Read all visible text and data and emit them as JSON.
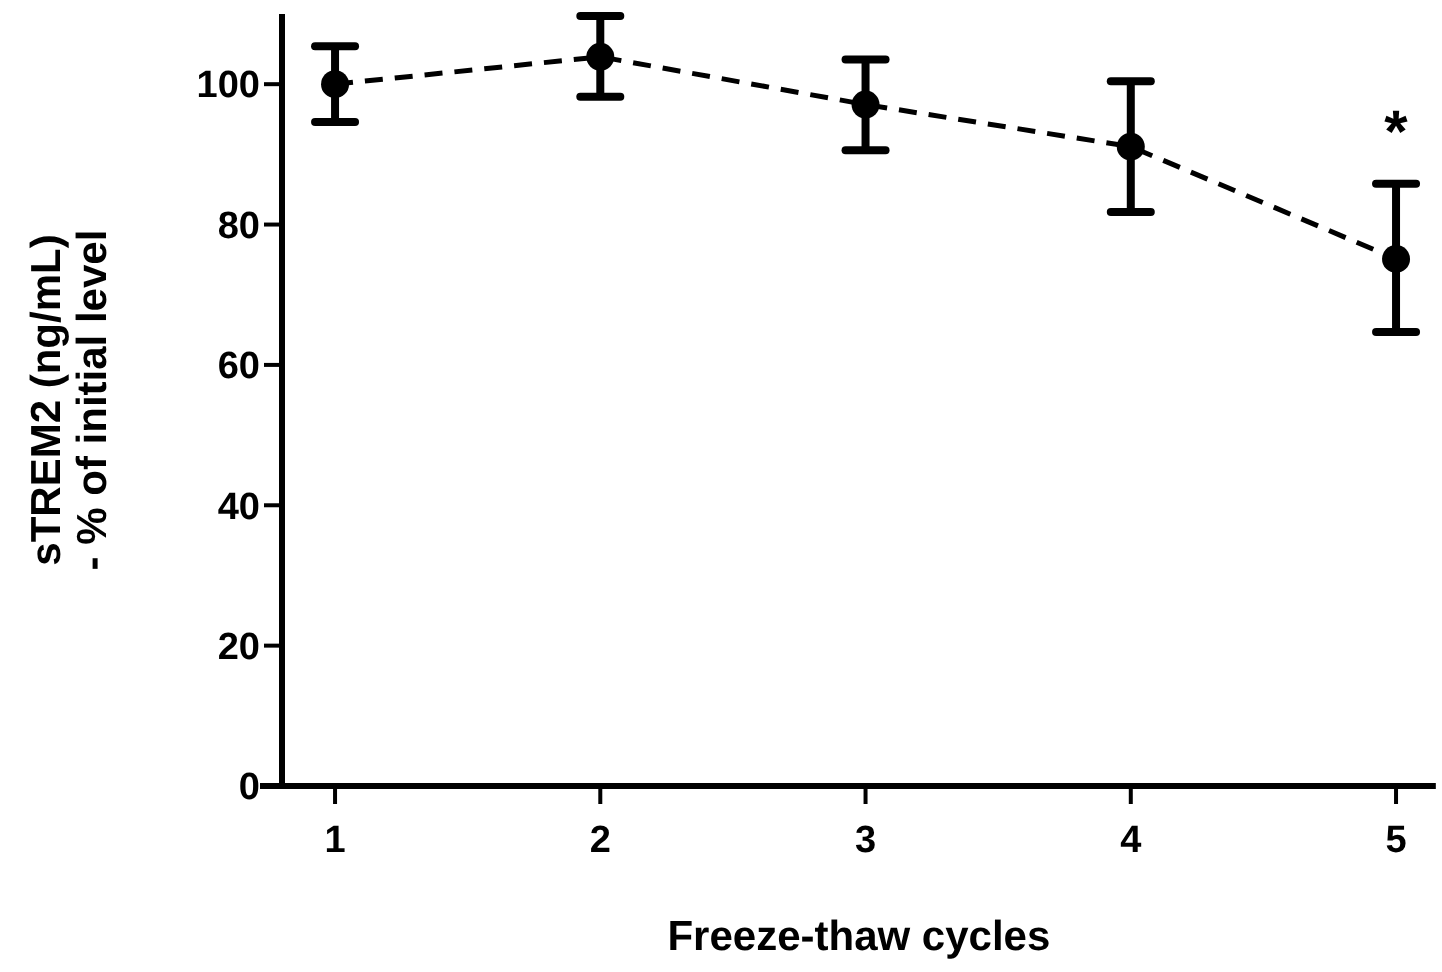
{
  "chart_data": {
    "type": "line",
    "xlabel": "Freeze-thaw cycles",
    "ylabel": "sTREM2 (ng/mL)\n- % of initial level",
    "x": [
      1,
      2,
      3,
      4,
      5
    ],
    "series": [
      {
        "color": "#000000",
        "values": [
          100,
          103.9,
          97.1,
          91.1,
          75.1
        ],
        "errors": [
          [
            94.6,
            105.4
          ],
          [
            98.2,
            109.7
          ],
          [
            90.6,
            103.5
          ],
          [
            81.8,
            100.4
          ],
          [
            64.7,
            85.8
          ]
        ]
      }
    ],
    "xlim": [
      0.8,
      5.15
    ],
    "xticks": [
      1,
      2,
      3,
      4,
      5
    ],
    "ylim": [
      0,
      110
    ],
    "yticks": [
      0,
      20,
      40,
      60,
      80,
      100
    ],
    "marker": "circle",
    "line_style": "dashed",
    "grid": false,
    "annotations": [
      "*"
    ]
  }
}
